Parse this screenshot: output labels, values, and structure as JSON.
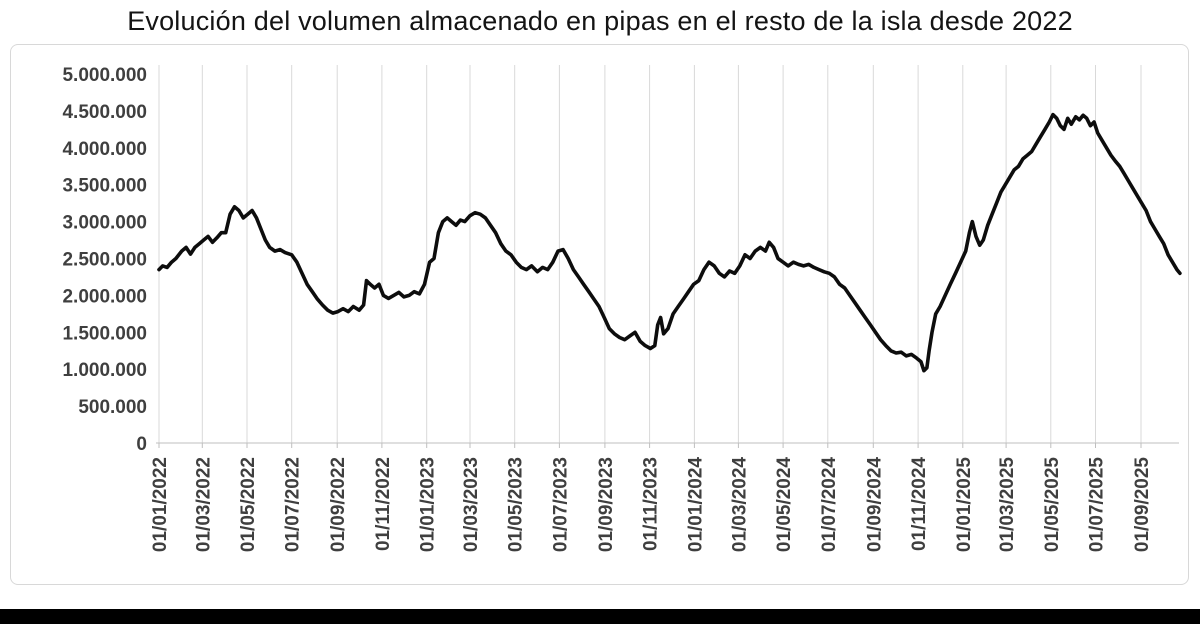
{
  "page": {
    "bottom_bar_color": "#000000"
  },
  "chart_data": {
    "type": "line",
    "title": "Evolución del volumen almacenado en pipas en el resto de la isla desde 2022",
    "xlabel": "",
    "ylabel": "",
    "ylim": [
      0,
      5000000
    ],
    "grid": "vertical-only",
    "legend": "none",
    "colors": {
      "line": "#0d0d0d",
      "grid": "#d9d9d9",
      "axis": "#bfbfbf",
      "tick_label": "#3f3f3f"
    },
    "y_ticks": [
      {
        "value": 0,
        "label": "0"
      },
      {
        "value": 500000,
        "label": "500.000"
      },
      {
        "value": 1000000,
        "label": "1.000.000"
      },
      {
        "value": 1500000,
        "label": "1.500.000"
      },
      {
        "value": 2000000,
        "label": "2.000.000"
      },
      {
        "value": 2500000,
        "label": "2.500.000"
      },
      {
        "value": 3000000,
        "label": "3.000.000"
      },
      {
        "value": 3500000,
        "label": "3.500.000"
      },
      {
        "value": 4000000,
        "label": "4.000.000"
      },
      {
        "value": 4500000,
        "label": "4.500.000"
      },
      {
        "value": 5000000,
        "label": "5.000.000"
      }
    ],
    "x_ticks": [
      {
        "date": "2022-01-01",
        "label": "01/01/2022"
      },
      {
        "date": "2022-03-01",
        "label": "01/03/2022"
      },
      {
        "date": "2022-05-01",
        "label": "01/05/2022"
      },
      {
        "date": "2022-07-01",
        "label": "01/07/2022"
      },
      {
        "date": "2022-09-01",
        "label": "01/09/2022"
      },
      {
        "date": "2022-11-01",
        "label": "01/11/2022"
      },
      {
        "date": "2023-01-01",
        "label": "01/01/2023"
      },
      {
        "date": "2023-03-01",
        "label": "01/03/2023"
      },
      {
        "date": "2023-05-01",
        "label": "01/05/2023"
      },
      {
        "date": "2023-07-01",
        "label": "01/07/2023"
      },
      {
        "date": "2023-09-01",
        "label": "01/09/2023"
      },
      {
        "date": "2023-11-01",
        "label": "01/11/2023"
      },
      {
        "date": "2024-01-01",
        "label": "01/01/2024"
      },
      {
        "date": "2024-03-01",
        "label": "01/03/2024"
      },
      {
        "date": "2024-05-01",
        "label": "01/05/2024"
      },
      {
        "date": "2024-07-01",
        "label": "01/07/2024"
      },
      {
        "date": "2024-09-01",
        "label": "01/09/2024"
      },
      {
        "date": "2024-11-01",
        "label": "01/11/2024"
      },
      {
        "date": "2025-01-01",
        "label": "01/01/2025"
      },
      {
        "date": "2025-03-01",
        "label": "01/03/2025"
      },
      {
        "date": "2025-05-01",
        "label": "01/05/2025"
      },
      {
        "date": "2025-07-01",
        "label": "01/07/2025"
      },
      {
        "date": "2025-09-01",
        "label": "01/09/2025"
      }
    ],
    "series": [
      {
        "name": "volumen_almacenado_pipas",
        "color": "#0d0d0d",
        "points": [
          [
            "2022-01-01",
            2350000
          ],
          [
            "2022-01-06",
            2400000
          ],
          [
            "2022-01-12",
            2380000
          ],
          [
            "2022-01-18",
            2450000
          ],
          [
            "2022-01-24",
            2500000
          ],
          [
            "2022-02-01",
            2600000
          ],
          [
            "2022-02-07",
            2650000
          ],
          [
            "2022-02-13",
            2560000
          ],
          [
            "2022-02-19",
            2650000
          ],
          [
            "2022-02-25",
            2700000
          ],
          [
            "2022-03-03",
            2750000
          ],
          [
            "2022-03-09",
            2800000
          ],
          [
            "2022-03-15",
            2720000
          ],
          [
            "2022-03-21",
            2780000
          ],
          [
            "2022-03-27",
            2850000
          ],
          [
            "2022-04-02",
            2850000
          ],
          [
            "2022-04-08",
            3100000
          ],
          [
            "2022-04-14",
            3200000
          ],
          [
            "2022-04-20",
            3150000
          ],
          [
            "2022-04-26",
            3050000
          ],
          [
            "2022-05-02",
            3100000
          ],
          [
            "2022-05-08",
            3150000
          ],
          [
            "2022-05-14",
            3050000
          ],
          [
            "2022-05-20",
            2900000
          ],
          [
            "2022-05-26",
            2750000
          ],
          [
            "2022-06-01",
            2650000
          ],
          [
            "2022-06-08",
            2600000
          ],
          [
            "2022-06-15",
            2620000
          ],
          [
            "2022-06-22",
            2580000
          ],
          [
            "2022-07-01",
            2550000
          ],
          [
            "2022-07-08",
            2450000
          ],
          [
            "2022-07-15",
            2300000
          ],
          [
            "2022-07-22",
            2150000
          ],
          [
            "2022-07-29",
            2050000
          ],
          [
            "2022-08-05",
            1950000
          ],
          [
            "2022-08-12",
            1870000
          ],
          [
            "2022-08-19",
            1800000
          ],
          [
            "2022-08-26",
            1760000
          ],
          [
            "2022-09-02",
            1780000
          ],
          [
            "2022-09-09",
            1820000
          ],
          [
            "2022-09-16",
            1780000
          ],
          [
            "2022-09-23",
            1850000
          ],
          [
            "2022-10-01",
            1800000
          ],
          [
            "2022-10-07",
            1870000
          ],
          [
            "2022-10-11",
            2200000
          ],
          [
            "2022-10-16",
            2150000
          ],
          [
            "2022-10-22",
            2100000
          ],
          [
            "2022-10-28",
            2150000
          ],
          [
            "2022-11-03",
            2000000
          ],
          [
            "2022-11-10",
            1960000
          ],
          [
            "2022-11-17",
            2000000
          ],
          [
            "2022-11-24",
            2040000
          ],
          [
            "2022-12-01",
            1980000
          ],
          [
            "2022-12-08",
            2000000
          ],
          [
            "2022-12-15",
            2050000
          ],
          [
            "2022-12-22",
            2020000
          ],
          [
            "2022-12-29",
            2150000
          ],
          [
            "2023-01-05",
            2450000
          ],
          [
            "2023-01-11",
            2500000
          ],
          [
            "2023-01-17",
            2850000
          ],
          [
            "2023-01-23",
            3000000
          ],
          [
            "2023-01-29",
            3050000
          ],
          [
            "2023-02-04",
            3000000
          ],
          [
            "2023-02-10",
            2950000
          ],
          [
            "2023-02-16",
            3020000
          ],
          [
            "2023-02-22",
            3000000
          ],
          [
            "2023-03-01",
            3080000
          ],
          [
            "2023-03-08",
            3120000
          ],
          [
            "2023-03-15",
            3100000
          ],
          [
            "2023-03-22",
            3050000
          ],
          [
            "2023-03-29",
            2950000
          ],
          [
            "2023-04-05",
            2850000
          ],
          [
            "2023-04-12",
            2700000
          ],
          [
            "2023-04-19",
            2600000
          ],
          [
            "2023-04-26",
            2550000
          ],
          [
            "2023-05-03",
            2450000
          ],
          [
            "2023-05-10",
            2380000
          ],
          [
            "2023-05-17",
            2350000
          ],
          [
            "2023-05-24",
            2400000
          ],
          [
            "2023-06-01",
            2320000
          ],
          [
            "2023-06-08",
            2380000
          ],
          [
            "2023-06-15",
            2350000
          ],
          [
            "2023-06-22",
            2450000
          ],
          [
            "2023-06-29",
            2600000
          ],
          [
            "2023-07-06",
            2620000
          ],
          [
            "2023-07-13",
            2500000
          ],
          [
            "2023-07-20",
            2350000
          ],
          [
            "2023-07-27",
            2250000
          ],
          [
            "2023-08-03",
            2150000
          ],
          [
            "2023-08-10",
            2050000
          ],
          [
            "2023-08-17",
            1950000
          ],
          [
            "2023-08-24",
            1850000
          ],
          [
            "2023-08-31",
            1700000
          ],
          [
            "2023-09-07",
            1550000
          ],
          [
            "2023-09-14",
            1480000
          ],
          [
            "2023-09-21",
            1430000
          ],
          [
            "2023-09-28",
            1400000
          ],
          [
            "2023-10-05",
            1450000
          ],
          [
            "2023-10-12",
            1500000
          ],
          [
            "2023-10-19",
            1380000
          ],
          [
            "2023-10-26",
            1320000
          ],
          [
            "2023-11-02",
            1280000
          ],
          [
            "2023-11-08",
            1320000
          ],
          [
            "2023-11-12",
            1600000
          ],
          [
            "2023-11-16",
            1700000
          ],
          [
            "2023-11-20",
            1480000
          ],
          [
            "2023-11-26",
            1550000
          ],
          [
            "2023-12-03",
            1750000
          ],
          [
            "2023-12-10",
            1850000
          ],
          [
            "2023-12-17",
            1950000
          ],
          [
            "2023-12-24",
            2050000
          ],
          [
            "2023-12-31",
            2150000
          ],
          [
            "2024-01-07",
            2200000
          ],
          [
            "2024-01-14",
            2350000
          ],
          [
            "2024-01-21",
            2450000
          ],
          [
            "2024-01-28",
            2400000
          ],
          [
            "2024-02-04",
            2300000
          ],
          [
            "2024-02-11",
            2250000
          ],
          [
            "2024-02-18",
            2330000
          ],
          [
            "2024-02-25",
            2300000
          ],
          [
            "2024-03-03",
            2400000
          ],
          [
            "2024-03-10",
            2550000
          ],
          [
            "2024-03-17",
            2500000
          ],
          [
            "2024-03-24",
            2600000
          ],
          [
            "2024-03-31",
            2650000
          ],
          [
            "2024-04-07",
            2600000
          ],
          [
            "2024-04-12",
            2720000
          ],
          [
            "2024-04-18",
            2650000
          ],
          [
            "2024-04-24",
            2500000
          ],
          [
            "2024-05-01",
            2450000
          ],
          [
            "2024-05-08",
            2400000
          ],
          [
            "2024-05-15",
            2450000
          ],
          [
            "2024-05-22",
            2420000
          ],
          [
            "2024-05-29",
            2400000
          ],
          [
            "2024-06-05",
            2420000
          ],
          [
            "2024-06-12",
            2380000
          ],
          [
            "2024-06-19",
            2350000
          ],
          [
            "2024-06-26",
            2320000
          ],
          [
            "2024-07-03",
            2300000
          ],
          [
            "2024-07-10",
            2250000
          ],
          [
            "2024-07-17",
            2150000
          ],
          [
            "2024-07-24",
            2100000
          ],
          [
            "2024-07-31",
            2000000
          ],
          [
            "2024-08-07",
            1900000
          ],
          [
            "2024-08-14",
            1800000
          ],
          [
            "2024-08-21",
            1700000
          ],
          [
            "2024-08-28",
            1600000
          ],
          [
            "2024-09-04",
            1500000
          ],
          [
            "2024-09-11",
            1400000
          ],
          [
            "2024-09-18",
            1320000
          ],
          [
            "2024-09-25",
            1250000
          ],
          [
            "2024-10-02",
            1220000
          ],
          [
            "2024-10-09",
            1230000
          ],
          [
            "2024-10-16",
            1180000
          ],
          [
            "2024-10-23",
            1200000
          ],
          [
            "2024-10-30",
            1150000
          ],
          [
            "2024-11-05",
            1100000
          ],
          [
            "2024-11-09",
            980000
          ],
          [
            "2024-11-13",
            1020000
          ],
          [
            "2024-11-16",
            1250000
          ],
          [
            "2024-11-20",
            1500000
          ],
          [
            "2024-11-25",
            1750000
          ],
          [
            "2024-12-01",
            1850000
          ],
          [
            "2024-12-08",
            2000000
          ],
          [
            "2024-12-15",
            2150000
          ],
          [
            "2024-12-22",
            2300000
          ],
          [
            "2024-12-29",
            2450000
          ],
          [
            "2025-01-05",
            2600000
          ],
          [
            "2025-01-10",
            2850000
          ],
          [
            "2025-01-14",
            3000000
          ],
          [
            "2025-01-19",
            2800000
          ],
          [
            "2025-01-24",
            2680000
          ],
          [
            "2025-01-29",
            2750000
          ],
          [
            "2025-02-04",
            2950000
          ],
          [
            "2025-02-10",
            3100000
          ],
          [
            "2025-02-16",
            3250000
          ],
          [
            "2025-02-22",
            3400000
          ],
          [
            "2025-02-28",
            3500000
          ],
          [
            "2025-03-06",
            3600000
          ],
          [
            "2025-03-12",
            3700000
          ],
          [
            "2025-03-18",
            3750000
          ],
          [
            "2025-03-24",
            3850000
          ],
          [
            "2025-03-30",
            3900000
          ],
          [
            "2025-04-05",
            3950000
          ],
          [
            "2025-04-11",
            4050000
          ],
          [
            "2025-04-17",
            4150000
          ],
          [
            "2025-04-23",
            4250000
          ],
          [
            "2025-04-29",
            4350000
          ],
          [
            "2025-05-04",
            4450000
          ],
          [
            "2025-05-09",
            4400000
          ],
          [
            "2025-05-14",
            4300000
          ],
          [
            "2025-05-19",
            4250000
          ],
          [
            "2025-05-24",
            4400000
          ],
          [
            "2025-05-29",
            4320000
          ],
          [
            "2025-06-04",
            4420000
          ],
          [
            "2025-06-09",
            4380000
          ],
          [
            "2025-06-14",
            4440000
          ],
          [
            "2025-06-19",
            4400000
          ],
          [
            "2025-06-24",
            4300000
          ],
          [
            "2025-06-29",
            4350000
          ],
          [
            "2025-07-04",
            4200000
          ],
          [
            "2025-07-10",
            4100000
          ],
          [
            "2025-07-16",
            4000000
          ],
          [
            "2025-07-22",
            3900000
          ],
          [
            "2025-07-28",
            3820000
          ],
          [
            "2025-08-03",
            3750000
          ],
          [
            "2025-08-09",
            3650000
          ],
          [
            "2025-08-15",
            3550000
          ],
          [
            "2025-08-21",
            3450000
          ],
          [
            "2025-08-27",
            3350000
          ],
          [
            "2025-09-02",
            3250000
          ],
          [
            "2025-09-08",
            3150000
          ],
          [
            "2025-09-14",
            3000000
          ],
          [
            "2025-09-20",
            2900000
          ],
          [
            "2025-09-26",
            2800000
          ],
          [
            "2025-10-02",
            2700000
          ],
          [
            "2025-10-08",
            2550000
          ],
          [
            "2025-10-14",
            2450000
          ],
          [
            "2025-10-20",
            2350000
          ],
          [
            "2025-10-24",
            2300000
          ]
        ]
      }
    ]
  }
}
